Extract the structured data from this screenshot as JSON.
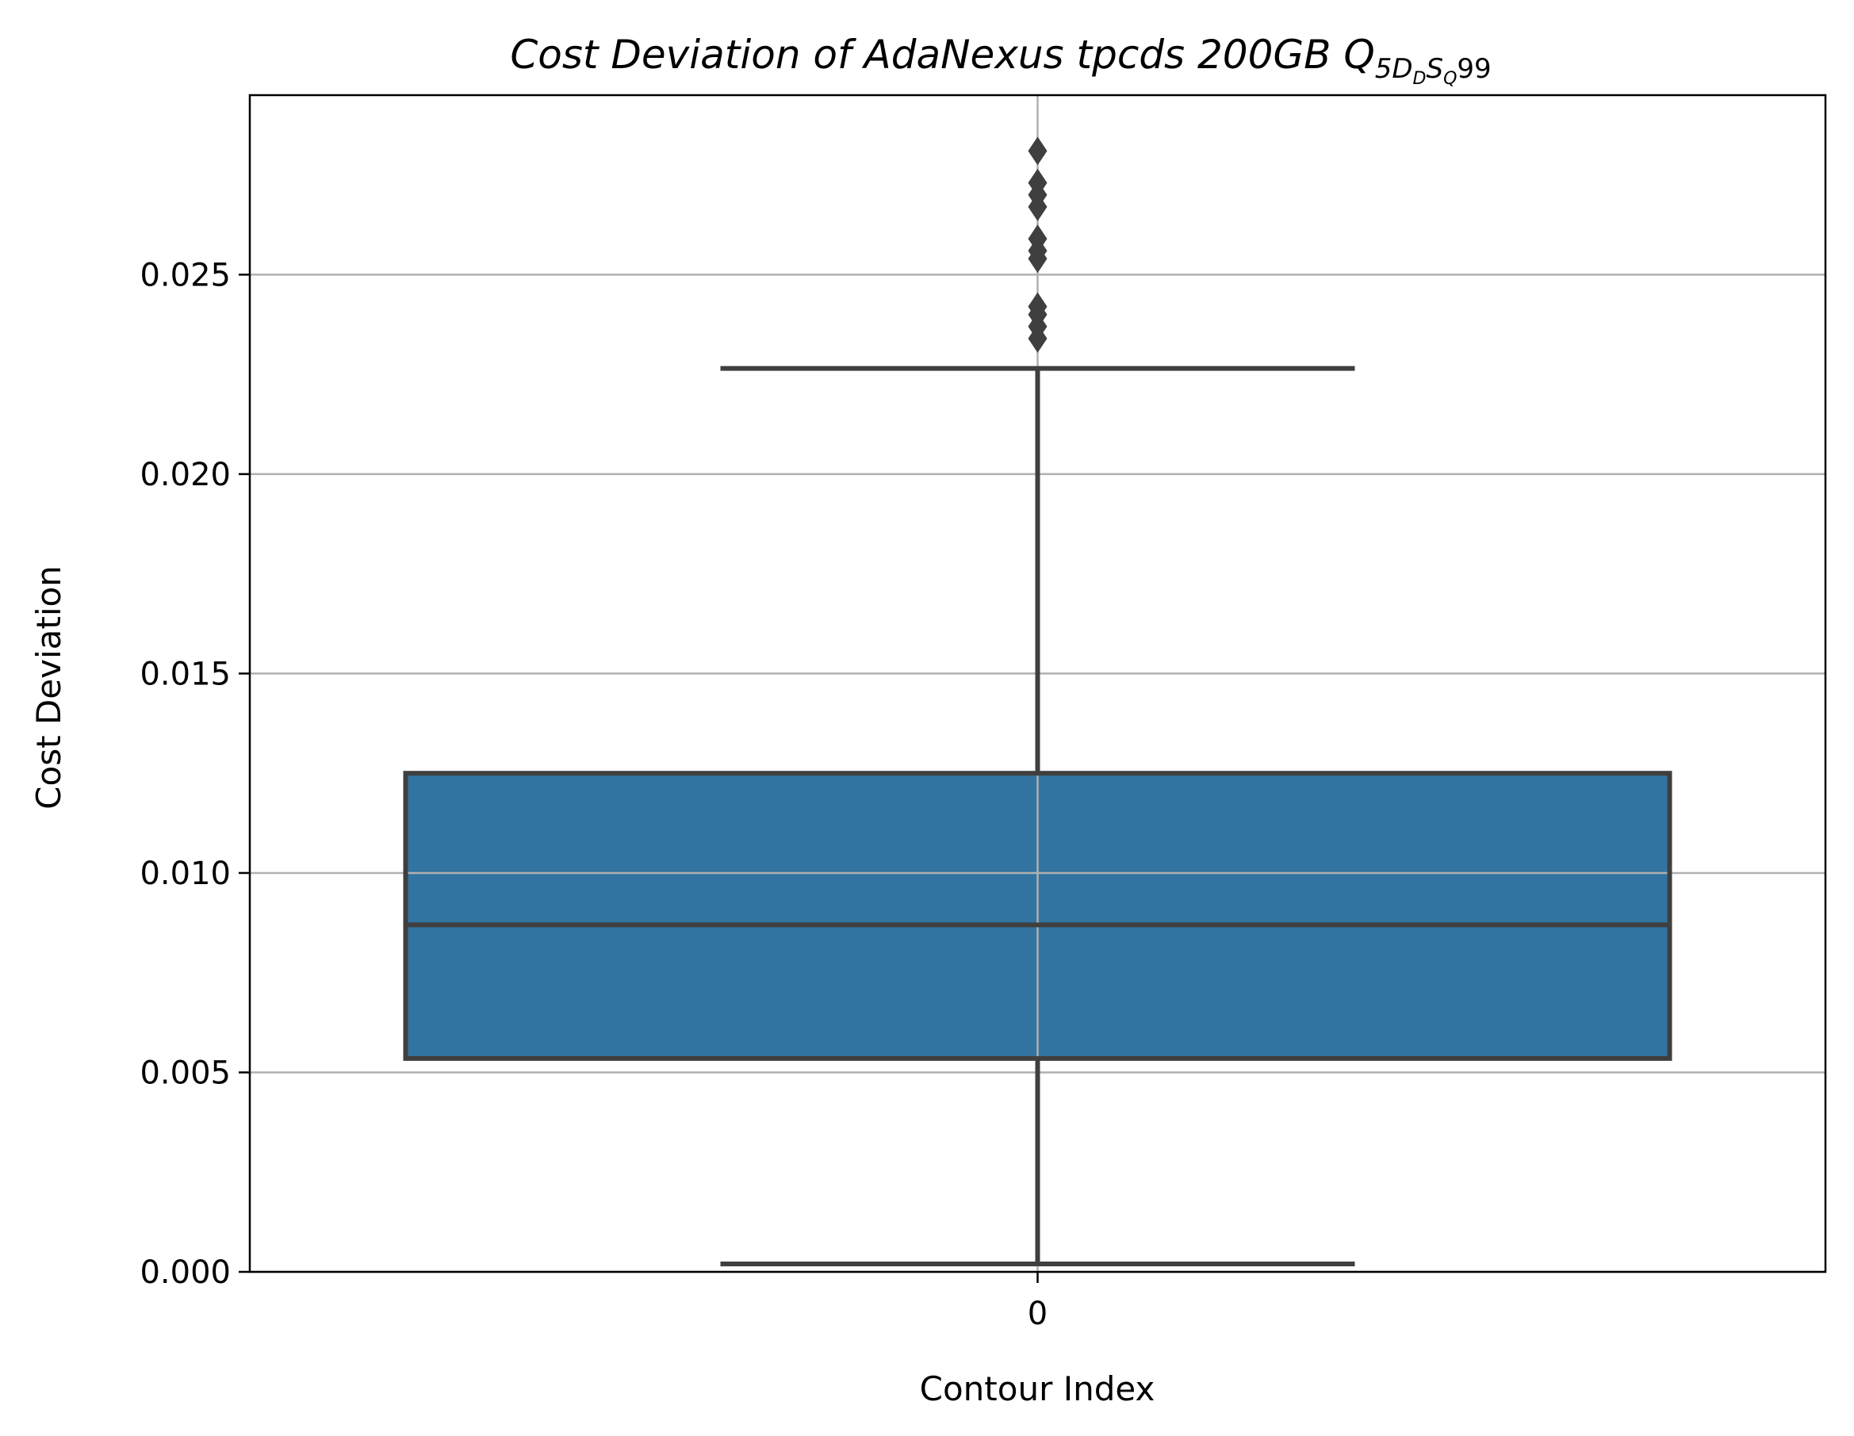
{
  "chart_data": {
    "type": "box",
    "title": {
      "main": "Cost Deviation of AdaNexus tpcds  200GB  Q",
      "subscript_lead": "5",
      "subscript_d": "D",
      "subscript_d2": "D",
      "subscript_s": "S",
      "subscript_q": "Q",
      "suffix": "99"
    },
    "xlabel": "Contour Index",
    "ylabel": "Cost Deviation",
    "categories": [
      "0"
    ],
    "ylim": [
      0,
      0.0295
    ],
    "yticks": [
      0.0,
      0.005,
      0.01,
      0.015,
      0.02,
      0.025
    ],
    "ytick_labels": [
      "0.000",
      "0.005",
      "0.010",
      "0.015",
      "0.020",
      "0.025"
    ],
    "grid": true,
    "box": {
      "category": "0",
      "whisker_low": 0.0002,
      "q1": 0.00535,
      "median": 0.0087,
      "q3": 0.0125,
      "whisker_high": 0.02265
    },
    "outliers": [
      0.0234,
      0.0237,
      0.024,
      0.0242,
      0.0254,
      0.0256,
      0.0259,
      0.0267,
      0.027,
      0.0273,
      0.0281
    ],
    "colors": {
      "box_fill": "#3274a1",
      "box_edge": "#3f3f3f",
      "grid": "#b0b0b0",
      "outlier": "#3f3f3f"
    }
  }
}
